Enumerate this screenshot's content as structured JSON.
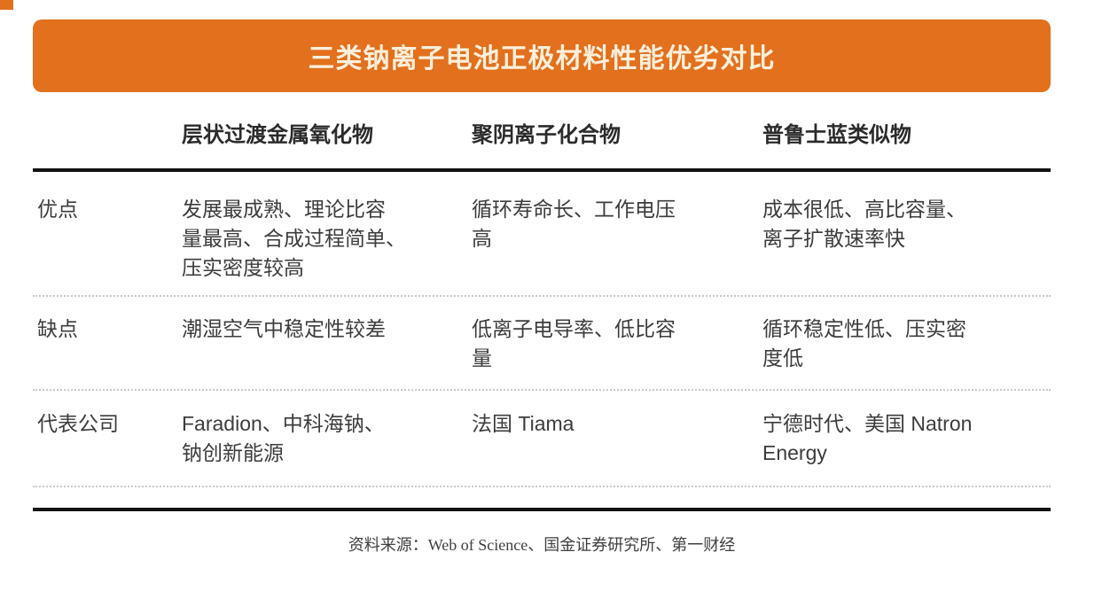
{
  "accent_color": "#e2701d",
  "banner": {
    "title": "三类钠离子电池正极材料性能优劣对比",
    "title_color": "#fcefdb"
  },
  "ui": {
    "table": {
      "columns": [
        "层状过渡金属氧化物",
        "聚阴离子化合物",
        "普鲁士蓝类似物"
      ],
      "rows": [
        {
          "label": "优点",
          "cells": [
            "发展最成熟、理论比容\n量最高、合成过程简单、\n压实密度较高",
            "循环寿命长、工作电压\n高",
            "成本很低、高比容量、\n离子扩散速率快"
          ]
        },
        {
          "label": "缺点",
          "cells": [
            "潮湿空气中稳定性较差",
            "低离子电导率、低比容\n量",
            "循环稳定性低、压实密\n度低"
          ]
        },
        {
          "label": "代表公司",
          "cells": [
            "Faradion、中科海钠、\n钠创新能源",
            "法国 Tiama",
            "宁德时代、美国 Natron\nEnergy"
          ]
        }
      ]
    }
  },
  "footer": {
    "source": "资料来源：Web of Science、国金证券研究所、第一财经"
  },
  "chart_data": {
    "type": "table",
    "title": "三类钠离子电池正极材料性能优劣对比",
    "columns": [
      "",
      "层状过渡金属氧化物",
      "聚阴离子化合物",
      "普鲁士蓝类似物"
    ],
    "rows": [
      [
        "优点",
        "发展最成熟、理论比容量最高、合成过程简单、压实密度较高",
        "循环寿命长、工作电压高",
        "成本很低、高比容量、离子扩散速率快"
      ],
      [
        "缺点",
        "潮湿空气中稳定性较差",
        "低离子电导率、低比容量",
        "循环稳定性低、压实密度低"
      ],
      [
        "代表公司",
        "Faradion、中科海钠、钠创新能源",
        "法国 Tiama",
        "宁德时代、美国 Natron Energy"
      ]
    ],
    "source_note": "资料来源：Web of Science、国金证券研究所、第一财经",
    "layout_hints": {
      "header_rule": "thick-solid",
      "row_rules": "dotted",
      "bottom_rule": "thick-solid",
      "banner_color": "#e2701d"
    }
  }
}
